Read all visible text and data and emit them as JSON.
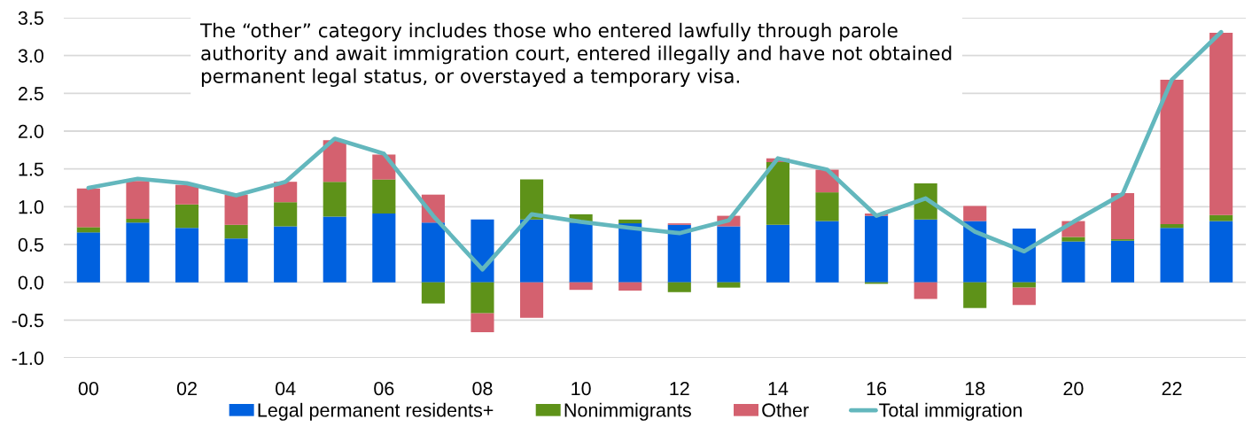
{
  "chart_data": {
    "type": "bar",
    "stacked": true,
    "categories": [
      "00",
      null,
      "02",
      null,
      "04",
      null,
      "06",
      null,
      "08",
      null,
      "10",
      null,
      "12",
      null,
      "14",
      null,
      "16",
      null,
      "18",
      null,
      "20",
      null,
      "22",
      null
    ],
    "series": [
      {
        "name": "Legal permanent residents+",
        "color": "#0061df",
        "values": [
          0.66,
          0.79,
          0.72,
          0.58,
          0.74,
          0.87,
          0.91,
          0.79,
          0.83,
          0.83,
          0.79,
          0.78,
          0.76,
          0.74,
          0.76,
          0.81,
          0.88,
          0.83,
          0.81,
          0.71,
          0.54,
          0.55,
          0.72,
          0.81
        ]
      },
      {
        "name": "Nonimmigrants",
        "color": "#5e9219",
        "values": [
          0.07,
          0.05,
          0.31,
          0.18,
          0.32,
          0.46,
          0.45,
          -0.28,
          -0.41,
          0.53,
          0.11,
          0.05,
          -0.13,
          -0.07,
          0.83,
          0.38,
          -0.02,
          0.48,
          -0.34,
          -0.07,
          0.06,
          0.02,
          0.05,
          0.08
        ]
      },
      {
        "name": "Other",
        "color": "#d4616f",
        "values": [
          0.51,
          0.5,
          0.26,
          0.4,
          0.27,
          0.55,
          0.33,
          0.37,
          -0.25,
          -0.47,
          -0.1,
          -0.11,
          0.02,
          0.14,
          0.05,
          0.3,
          0.03,
          -0.22,
          0.2,
          -0.23,
          0.21,
          0.61,
          1.91,
          2.41
        ]
      },
      {
        "name": "Total immigration",
        "type": "line",
        "color": "#63b7bd",
        "values": [
          1.25,
          1.37,
          1.31,
          1.15,
          1.33,
          1.9,
          1.7,
          0.88,
          0.17,
          0.9,
          0.8,
          0.72,
          0.65,
          0.82,
          1.64,
          1.49,
          0.88,
          1.11,
          0.67,
          0.41,
          0.8,
          1.17,
          2.68,
          3.31
        ]
      }
    ],
    "ylim": [
      -1.0,
      3.5
    ],
    "yticks": [
      {
        "value": -1.0,
        "label": "-1.0"
      },
      {
        "value": -0.5,
        "label": "-0.5"
      },
      {
        "value": 0.0,
        "label": "0.0"
      },
      {
        "value": 0.5,
        "label": "0.5"
      },
      {
        "value": 1.0,
        "label": "1.0"
      },
      {
        "value": 1.5,
        "label": "1.5"
      },
      {
        "value": 2.0,
        "label": "2.0"
      },
      {
        "value": 2.5,
        "label": "2.5"
      },
      {
        "value": 3.0,
        "label": "3.0"
      },
      {
        "value": 3.5,
        "label": "3.5"
      }
    ],
    "grid": "y",
    "legend": "bottom",
    "annotations": [
      "The “other” category includes those who entered lawfully through parole\nauthority and await immigration court, entered illegally and have not obtained\npermanent legal status, or overstayed a temporary visa."
    ]
  }
}
